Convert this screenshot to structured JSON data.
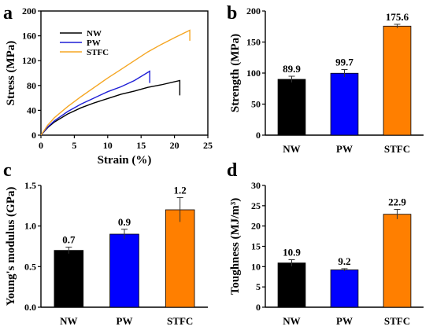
{
  "chart_data": [
    {
      "panel": "a",
      "type": "line",
      "xlabel": "Strain (%)",
      "ylabel": "Stress (MPa)",
      "xlim": [
        0,
        25
      ],
      "ylim": [
        0,
        200
      ],
      "xticks": [
        0,
        5,
        10,
        15,
        20,
        25
      ],
      "yticks": [
        0,
        40,
        80,
        120,
        160,
        200
      ],
      "legend": "top-left",
      "series": [
        {
          "name": "NW",
          "color": "#000000",
          "x": [
            0,
            1,
            2,
            4,
            6,
            8,
            10,
            12,
            14,
            16,
            18,
            20,
            20.8,
            20.8
          ],
          "y": [
            0,
            12,
            21,
            34,
            44,
            52,
            59,
            66,
            71,
            77,
            81,
            86,
            88,
            64
          ]
        },
        {
          "name": "PW",
          "color": "#1f1fd6",
          "x": [
            0,
            1,
            2,
            4,
            6,
            8,
            10,
            12,
            14,
            16.3,
            16.3
          ],
          "y": [
            0,
            13,
            23,
            38,
            50,
            60,
            70,
            78,
            88,
            103,
            84
          ]
        },
        {
          "name": "STFC",
          "color": "#f5a623",
          "x": [
            0,
            1,
            2,
            4,
            6,
            8,
            10,
            12,
            14,
            16,
            18,
            20,
            22.3,
            22.3
          ],
          "y": [
            0,
            16,
            28,
            46,
            62,
            77,
            92,
            106,
            120,
            134,
            146,
            157,
            169,
            152
          ]
        }
      ]
    },
    {
      "panel": "b",
      "type": "bar",
      "categories": [
        "NW",
        "PW",
        "STFC"
      ],
      "values": [
        89.9,
        99.7,
        175.6
      ],
      "errors": [
        5,
        6,
        3
      ],
      "colors": [
        "#000000",
        "#0000ff",
        "#ff7f00"
      ],
      "ylabel": "Strength (MPa)",
      "ylim": [
        0,
        200
      ],
      "yticks": [
        0,
        50,
        100,
        150,
        200
      ]
    },
    {
      "panel": "c",
      "type": "bar",
      "categories": [
        "NW",
        "PW",
        "STFC"
      ],
      "values": [
        0.7,
        0.9,
        1.2
      ],
      "errors": [
        0.04,
        0.06,
        0.15
      ],
      "colors": [
        "#000000",
        "#0000ff",
        "#ff7f00"
      ],
      "ylabel": "Young's modulus (GPa)",
      "ylim": [
        0,
        1.5
      ],
      "yticks": [
        0.0,
        0.5,
        1.0,
        1.5
      ]
    },
    {
      "panel": "d",
      "type": "bar",
      "categories": [
        "NW",
        "PW",
        "STFC"
      ],
      "values": [
        10.9,
        9.2,
        22.9
      ],
      "errors": [
        0.8,
        0.3,
        1.2
      ],
      "colors": [
        "#000000",
        "#0000ff",
        "#ff7f00"
      ],
      "ylabel": "Toughness (MJ/m³)",
      "ylim": [
        0,
        30
      ],
      "yticks": [
        0,
        5,
        10,
        15,
        20,
        25,
        30
      ]
    }
  ]
}
